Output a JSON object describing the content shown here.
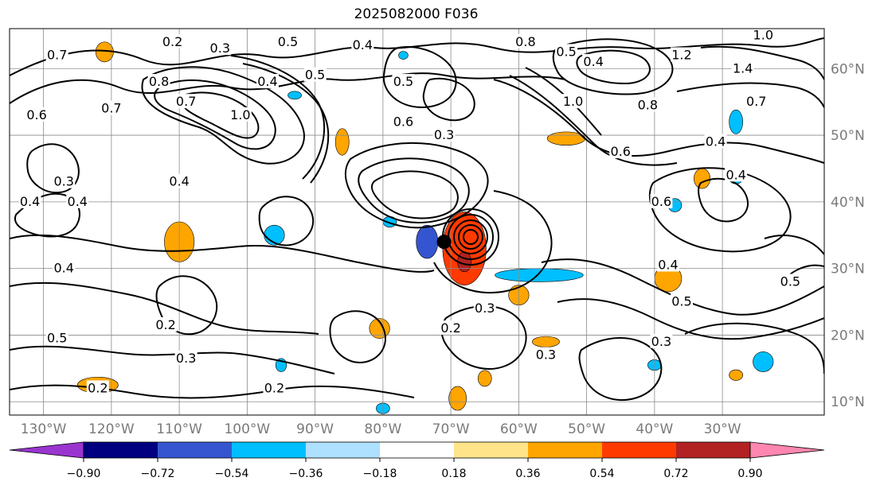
{
  "title": "2025082000 F036",
  "chart_data": {
    "type": "heatmap",
    "title": "2025082000 F036",
    "lon_ticks": [
      "130°W",
      "120°W",
      "110°W",
      "100°W",
      "90°W",
      "80°W",
      "70°W",
      "60°W",
      "50°W",
      "40°W",
      "30°W"
    ],
    "lon_values": [
      -130,
      -120,
      -110,
      -100,
      -90,
      -80,
      -70,
      -60,
      -50,
      -40,
      -30
    ],
    "lat_ticks": [
      "60°N",
      "50°N",
      "40°N",
      "30°N",
      "20°N",
      "10°N"
    ],
    "lat_values": [
      60,
      50,
      40,
      30,
      20,
      10
    ],
    "xlim": [
      -135,
      -15
    ],
    "ylim": [
      8,
      66
    ],
    "grid": true,
    "colorbar": {
      "boundaries": [
        -0.9,
        -0.72,
        -0.54,
        -0.36,
        -0.18,
        0.18,
        0.36,
        0.54,
        0.72,
        0.9
      ],
      "tick_labels": [
        "−0.90",
        "−0.72",
        "−0.54",
        "−0.36",
        "−0.18",
        "0.18",
        "0.36",
        "0.54",
        "0.72",
        "0.90"
      ],
      "colors": [
        "#9a35d0",
        "#000080",
        "#3555d0",
        "#00bfff",
        "#aee0ff",
        "#ffffff",
        "#ffe48a",
        "#ffa500",
        "#ff3a00",
        "#b22222",
        "#ff86b0"
      ],
      "extend": "both"
    },
    "contour_labels": [
      {
        "text": "0.7",
        "lon": -128,
        "lat": 62
      },
      {
        "text": "0.2",
        "lon": -111,
        "lat": 64
      },
      {
        "text": "0.3",
        "lon": -104,
        "lat": 63
      },
      {
        "text": "0.5",
        "lon": -94,
        "lat": 64
      },
      {
        "text": "0.4",
        "lon": -83,
        "lat": 63.5
      },
      {
        "text": "0.8",
        "lon": -59,
        "lat": 64
      },
      {
        "text": "0.5",
        "lon": -53,
        "lat": 62.5
      },
      {
        "text": "0.4",
        "lon": -49,
        "lat": 61
      },
      {
        "text": "1.2",
        "lon": -36,
        "lat": 62
      },
      {
        "text": "1.0",
        "lon": -24,
        "lat": 65
      },
      {
        "text": "1.4",
        "lon": -27,
        "lat": 60
      },
      {
        "text": "0.8",
        "lon": -113,
        "lat": 58
      },
      {
        "text": "0.4",
        "lon": -97,
        "lat": 58
      },
      {
        "text": "0.5",
        "lon": -90,
        "lat": 59
      },
      {
        "text": "0.5",
        "lon": -77,
        "lat": 58
      },
      {
        "text": "1.0",
        "lon": -52,
        "lat": 55
      },
      {
        "text": "0.8",
        "lon": -41,
        "lat": 54.5
      },
      {
        "text": "0.7",
        "lon": -25,
        "lat": 55
      },
      {
        "text": "0.6",
        "lon": -131,
        "lat": 53
      },
      {
        "text": "0.7",
        "lon": -120,
        "lat": 54
      },
      {
        "text": "0.7",
        "lon": -109,
        "lat": 55
      },
      {
        "text": "1.0",
        "lon": -101,
        "lat": 53
      },
      {
        "text": "0.6",
        "lon": -77,
        "lat": 52
      },
      {
        "text": "0.3",
        "lon": -71,
        "lat": 50
      },
      {
        "text": "0.4",
        "lon": -31,
        "lat": 49
      },
      {
        "text": "0.6",
        "lon": -45,
        "lat": 47.5
      },
      {
        "text": "0.4",
        "lon": -28,
        "lat": 44
      },
      {
        "text": "0.4",
        "lon": -132,
        "lat": 40
      },
      {
        "text": "0.3",
        "lon": -127,
        "lat": 43
      },
      {
        "text": "0.4",
        "lon": -125,
        "lat": 40
      },
      {
        "text": "0.4",
        "lon": -110,
        "lat": 43
      },
      {
        "text": "0.6",
        "lon": -39,
        "lat": 40
      },
      {
        "text": "0.4",
        "lon": -127,
        "lat": 30
      },
      {
        "text": "0.4",
        "lon": -38,
        "lat": 30.5
      },
      {
        "text": "0.5",
        "lon": -36,
        "lat": 25
      },
      {
        "text": "0.3",
        "lon": -65,
        "lat": 24
      },
      {
        "text": "0.2",
        "lon": -112,
        "lat": 21.5
      },
      {
        "text": "0.5",
        "lon": -128,
        "lat": 19.5
      },
      {
        "text": "0.2",
        "lon": -70,
        "lat": 21
      },
      {
        "text": "0.3",
        "lon": -39,
        "lat": 19
      },
      {
        "text": "0.3",
        "lon": -109,
        "lat": 16.5
      },
      {
        "text": "0.3",
        "lon": -56,
        "lat": 17
      },
      {
        "text": "0.2",
        "lon": -122,
        "lat": 12
      },
      {
        "text": "0.2",
        "lon": -96,
        "lat": 12
      },
      {
        "text": "0.5",
        "lon": -20,
        "lat": 28
      }
    ],
    "shaded_regions": [
      {
        "category": "0.54 to 0.72",
        "lon": -68,
        "lat": 33,
        "rx": 3.2,
        "ry": 5.5
      },
      {
        "category": "0.72 to 0.90",
        "lon": -68,
        "lat": 31,
        "rx": 1.0,
        "ry": 1.5
      },
      {
        "category": "-0.72 to -0.54",
        "lon": -73.5,
        "lat": 34,
        "rx": 1.6,
        "ry": 2.5
      },
      {
        "category": "0.36 to 0.54",
        "lon": -110,
        "lat": 34,
        "rx": 2.2,
        "ry": 3.0
      },
      {
        "category": "0.36 to 0.54",
        "lon": -122,
        "lat": 12.5,
        "rx": 3.0,
        "ry": 1.2
      },
      {
        "category": "0.36 to 0.54",
        "lon": -86,
        "lat": 49,
        "rx": 1.0,
        "ry": 2.0
      },
      {
        "category": "0.36 to 0.54",
        "lon": -53,
        "lat": 49.5,
        "rx": 2.8,
        "ry": 1.0
      },
      {
        "category": "0.36 to 0.54",
        "lon": -38,
        "lat": 28.5,
        "rx": 2.0,
        "ry": 2.0
      },
      {
        "category": "0.36 to 0.54",
        "lon": -60,
        "lat": 26,
        "rx": 1.5,
        "ry": 1.5
      },
      {
        "category": "0.36 to 0.54",
        "lon": -80.5,
        "lat": 21,
        "rx": 1.5,
        "ry": 1.5
      },
      {
        "category": "0.36 to 0.54",
        "lon": -121,
        "lat": 62.5,
        "rx": 1.3,
        "ry": 1.5
      },
      {
        "category": "0.36 to 0.54",
        "lon": -56,
        "lat": 19,
        "rx": 2.0,
        "ry": 0.8
      },
      {
        "category": "0.36 to 0.54",
        "lon": -69,
        "lat": 10.5,
        "rx": 1.3,
        "ry": 1.8
      },
      {
        "category": "0.36 to 0.54",
        "lon": -65,
        "lat": 13.5,
        "rx": 1.0,
        "ry": 1.2
      },
      {
        "category": "0.36 to 0.54",
        "lon": -33,
        "lat": 43.5,
        "rx": 1.2,
        "ry": 1.5
      },
      {
        "category": "0.36 to 0.54",
        "lon": -28,
        "lat": 14,
        "rx": 1.0,
        "ry": 0.8
      },
      {
        "category": "-0.54 to -0.36",
        "lon": -57,
        "lat": 29,
        "rx": 6.5,
        "ry": 1.0
      },
      {
        "category": "-0.54 to -0.36",
        "lon": -96,
        "lat": 35,
        "rx": 1.5,
        "ry": 1.5
      },
      {
        "category": "-0.54 to -0.36",
        "lon": -79,
        "lat": 37,
        "rx": 1.0,
        "ry": 0.8
      },
      {
        "category": "-0.54 to -0.36",
        "lon": -28,
        "lat": 52,
        "rx": 1.0,
        "ry": 1.8
      },
      {
        "category": "-0.54 to -0.36",
        "lon": -37,
        "lat": 39.5,
        "rx": 1.0,
        "ry": 1.0
      },
      {
        "category": "-0.54 to -0.36",
        "lon": -28,
        "lat": 43.5,
        "rx": 1.0,
        "ry": 0.8
      },
      {
        "category": "-0.54 to -0.36",
        "lon": -40,
        "lat": 15.5,
        "rx": 1.0,
        "ry": 0.8
      },
      {
        "category": "-0.54 to -0.36",
        "lon": -24,
        "lat": 16,
        "rx": 1.5,
        "ry": 1.5
      },
      {
        "category": "-0.54 to -0.36",
        "lon": -95,
        "lat": 15.5,
        "rx": 0.8,
        "ry": 1.0
      },
      {
        "category": "-0.54 to -0.36",
        "lon": -80,
        "lat": 9,
        "rx": 1.0,
        "ry": 0.8
      },
      {
        "category": "-0.54 to -0.36",
        "lon": -93,
        "lat": 56,
        "rx": 1.0,
        "ry": 0.6
      },
      {
        "category": "-0.54 to -0.36",
        "lon": -77,
        "lat": 62,
        "rx": 0.7,
        "ry": 0.6
      }
    ],
    "cyclone_center": {
      "lon": -71,
      "lat": 34
    }
  }
}
